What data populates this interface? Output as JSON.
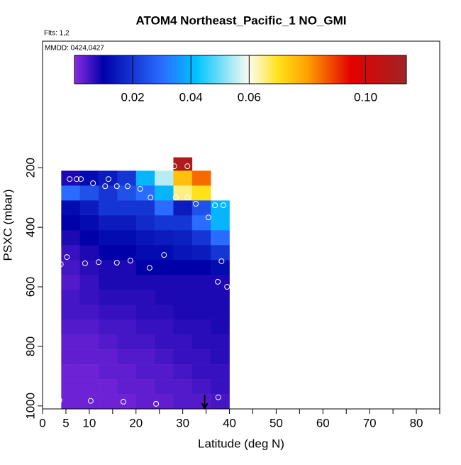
{
  "chart_data": {
    "type": "heatmap",
    "title": "ATOM4 Northeast_Pacific_1 NO_GMI",
    "flights": "Flts: 1,2",
    "dates": "MMDD: 0424,0427",
    "xlabel": "Latitude (deg N)",
    "ylabel": "PSXC (mbar)",
    "xlim": [
      0,
      85
    ],
    "xticks": [
      0,
      5,
      10,
      20,
      30,
      40,
      50,
      60,
      70,
      80
    ],
    "xminorticks": [
      15,
      25,
      35,
      45,
      55,
      65,
      75,
      85
    ],
    "ylim": [
      1010,
      -225
    ],
    "yticks": [
      200,
      400,
      600,
      800,
      1000
    ],
    "x_edges": [
      4,
      8,
      12,
      16,
      20,
      24,
      28,
      32,
      36,
      40
    ],
    "y_edges": [
      165,
      210,
      260,
      310,
      360,
      410,
      460,
      510,
      560,
      610,
      660,
      710,
      760,
      810,
      860,
      910,
      960,
      1010
    ],
    "z": [
      [
        null,
        null,
        null,
        null,
        null,
        null,
        0.11,
        null,
        null
      ],
      [
        0.008,
        0.012,
        0.015,
        0.02,
        0.04,
        0.055,
        0.075,
        0.085,
        null
      ],
      [
        0.03,
        0.025,
        0.02,
        0.025,
        0.03,
        0.04,
        0.065,
        0.07,
        null
      ],
      [
        0.012,
        0.015,
        0.02,
        0.02,
        0.02,
        0.03,
        0.015,
        0.025,
        0.04
      ],
      [
        0.01,
        0.012,
        0.015,
        0.015,
        0.018,
        0.02,
        0.02,
        0.03,
        0.04
      ],
      [
        0.008,
        0.01,
        0.012,
        0.012,
        0.014,
        0.015,
        0.016,
        0.02,
        0.03
      ],
      [
        0.006,
        0.008,
        0.01,
        0.01,
        0.012,
        0.012,
        0.014,
        0.015,
        0.02
      ],
      [
        0.005,
        0.007,
        0.008,
        0.008,
        0.01,
        0.01,
        0.01,
        0.01,
        0.012
      ],
      [
        0.004,
        0.006,
        0.008,
        0.008,
        0.008,
        0.008,
        0.008,
        0.008,
        0.008
      ],
      [
        0.005,
        0.006,
        0.007,
        0.007,
        0.007,
        0.008,
        0.008,
        0.008,
        0.008
      ],
      [
        0.005,
        0.005,
        0.006,
        0.006,
        0.007,
        0.007,
        0.008,
        0.008,
        0.008
      ],
      [
        0.004,
        0.004,
        0.005,
        0.005,
        0.006,
        0.006,
        0.007,
        0.007,
        0.008
      ],
      [
        0.003,
        0.003,
        0.004,
        0.005,
        0.005,
        0.006,
        0.006,
        0.007,
        0.007
      ],
      [
        0.003,
        0.003,
        0.003,
        0.004,
        0.004,
        0.005,
        0.006,
        0.006,
        0.007
      ],
      [
        0.002,
        0.002,
        0.003,
        0.003,
        0.004,
        0.004,
        0.005,
        0.006,
        0.006
      ],
      [
        0.002,
        0.002,
        0.002,
        0.003,
        0.003,
        0.004,
        0.004,
        0.005,
        0.006
      ],
      [
        0.002,
        0.002,
        0.002,
        0.002,
        0.003,
        0.003,
        0.004,
        0.004,
        0.005
      ]
    ],
    "clim": [
      0,
      0.114
    ],
    "cticks": [
      0.02,
      0.04,
      0.06,
      {
        "value": 0.1,
        "label": "0.10"
      }
    ],
    "colormap": [
      {
        "value": 0,
        "color": "#8a2be2"
      },
      {
        "value": 0.01,
        "color": "#0000a8"
      },
      {
        "value": 0.03,
        "color": "#2a6cff"
      },
      {
        "value": 0.042,
        "color": "#00c4ff"
      },
      {
        "value": 0.06,
        "color": "#fcfcf0"
      },
      {
        "value": 0.07,
        "color": "#ffe21a"
      },
      {
        "value": 0.08,
        "color": "#ffa000"
      },
      {
        "value": 0.095,
        "color": "#e40000"
      },
      {
        "value": 0.114,
        "color": "#a02424"
      }
    ],
    "points": {
      "color": "#ffffff",
      "x": [
        5.8,
        7.3,
        8.2,
        14.1,
        10.8,
        13.4,
        15.9,
        18.2,
        20.9,
        23.1,
        28.5,
        31,
        32.8,
        36.9,
        38.7,
        35.5,
        28.2,
        31,
        5.2,
        3.9,
        9.1,
        12,
        15.9,
        18.8,
        22.9,
        26,
        38.3,
        37.5,
        39.5,
        3.6,
        10.3,
        17.3,
        24.3,
        37.6
      ],
      "y": [
        238,
        238,
        238,
        238,
        252,
        262,
        262,
        262,
        271,
        300,
        300,
        300,
        321,
        326,
        326,
        367,
        195,
        195,
        500,
        524,
        521,
        517,
        519,
        512,
        536,
        493,
        514,
        583,
        600,
        981,
        983,
        986,
        993,
        971
      ]
    },
    "arrow_lat": 34.7
  }
}
